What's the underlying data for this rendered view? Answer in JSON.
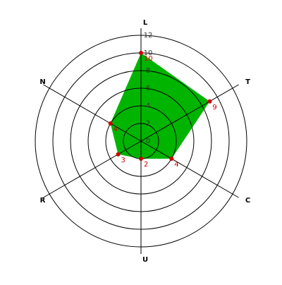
{
  "chart_data": {
    "type": "radar",
    "categories": [
      "L",
      "T",
      "C",
      "U",
      "R",
      "N"
    ],
    "values": [
      10,
      9,
      4,
      2,
      3,
      4
    ],
    "color": "#00b400",
    "marker_color": "#cc0000",
    "rlim": [
      0,
      12
    ],
    "rticks": [
      0,
      2,
      4,
      6,
      8,
      10,
      12
    ],
    "grid": true
  }
}
